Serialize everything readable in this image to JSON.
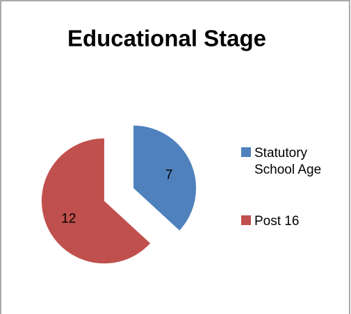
{
  "chart_data": {
    "type": "pie",
    "title": "Educational Stage",
    "categories": [
      "Statutory School Age",
      "Post 16"
    ],
    "values": [
      7,
      12
    ],
    "colors": [
      "#4f81bd",
      "#c0504d"
    ],
    "legend": "right"
  }
}
